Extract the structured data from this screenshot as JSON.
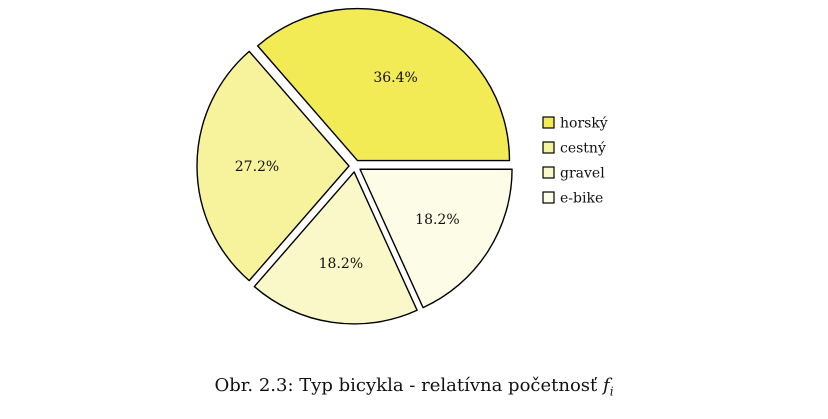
{
  "chart_data": {
    "type": "pie",
    "title": "",
    "categories": [
      "horský",
      "cestný",
      "gravel",
      "e-bike"
    ],
    "values": [
      36.4,
      27.2,
      18.2,
      18.2
    ],
    "labels": [
      "36.4%",
      "27.2%",
      "18.2%",
      "18.2%"
    ],
    "colors": [
      "#f2eb55",
      "#f6f39c",
      "#faf8c8",
      "#fdfce6"
    ],
    "legend": {
      "placement": "right",
      "entries": [
        "horský",
        "cestný",
        "gravel",
        "e-bike"
      ]
    }
  },
  "caption": {
    "prefix": "Obr. 2.3: Typ bicykla - relatívna početnosť",
    "variable": "f",
    "subscript": "i"
  }
}
